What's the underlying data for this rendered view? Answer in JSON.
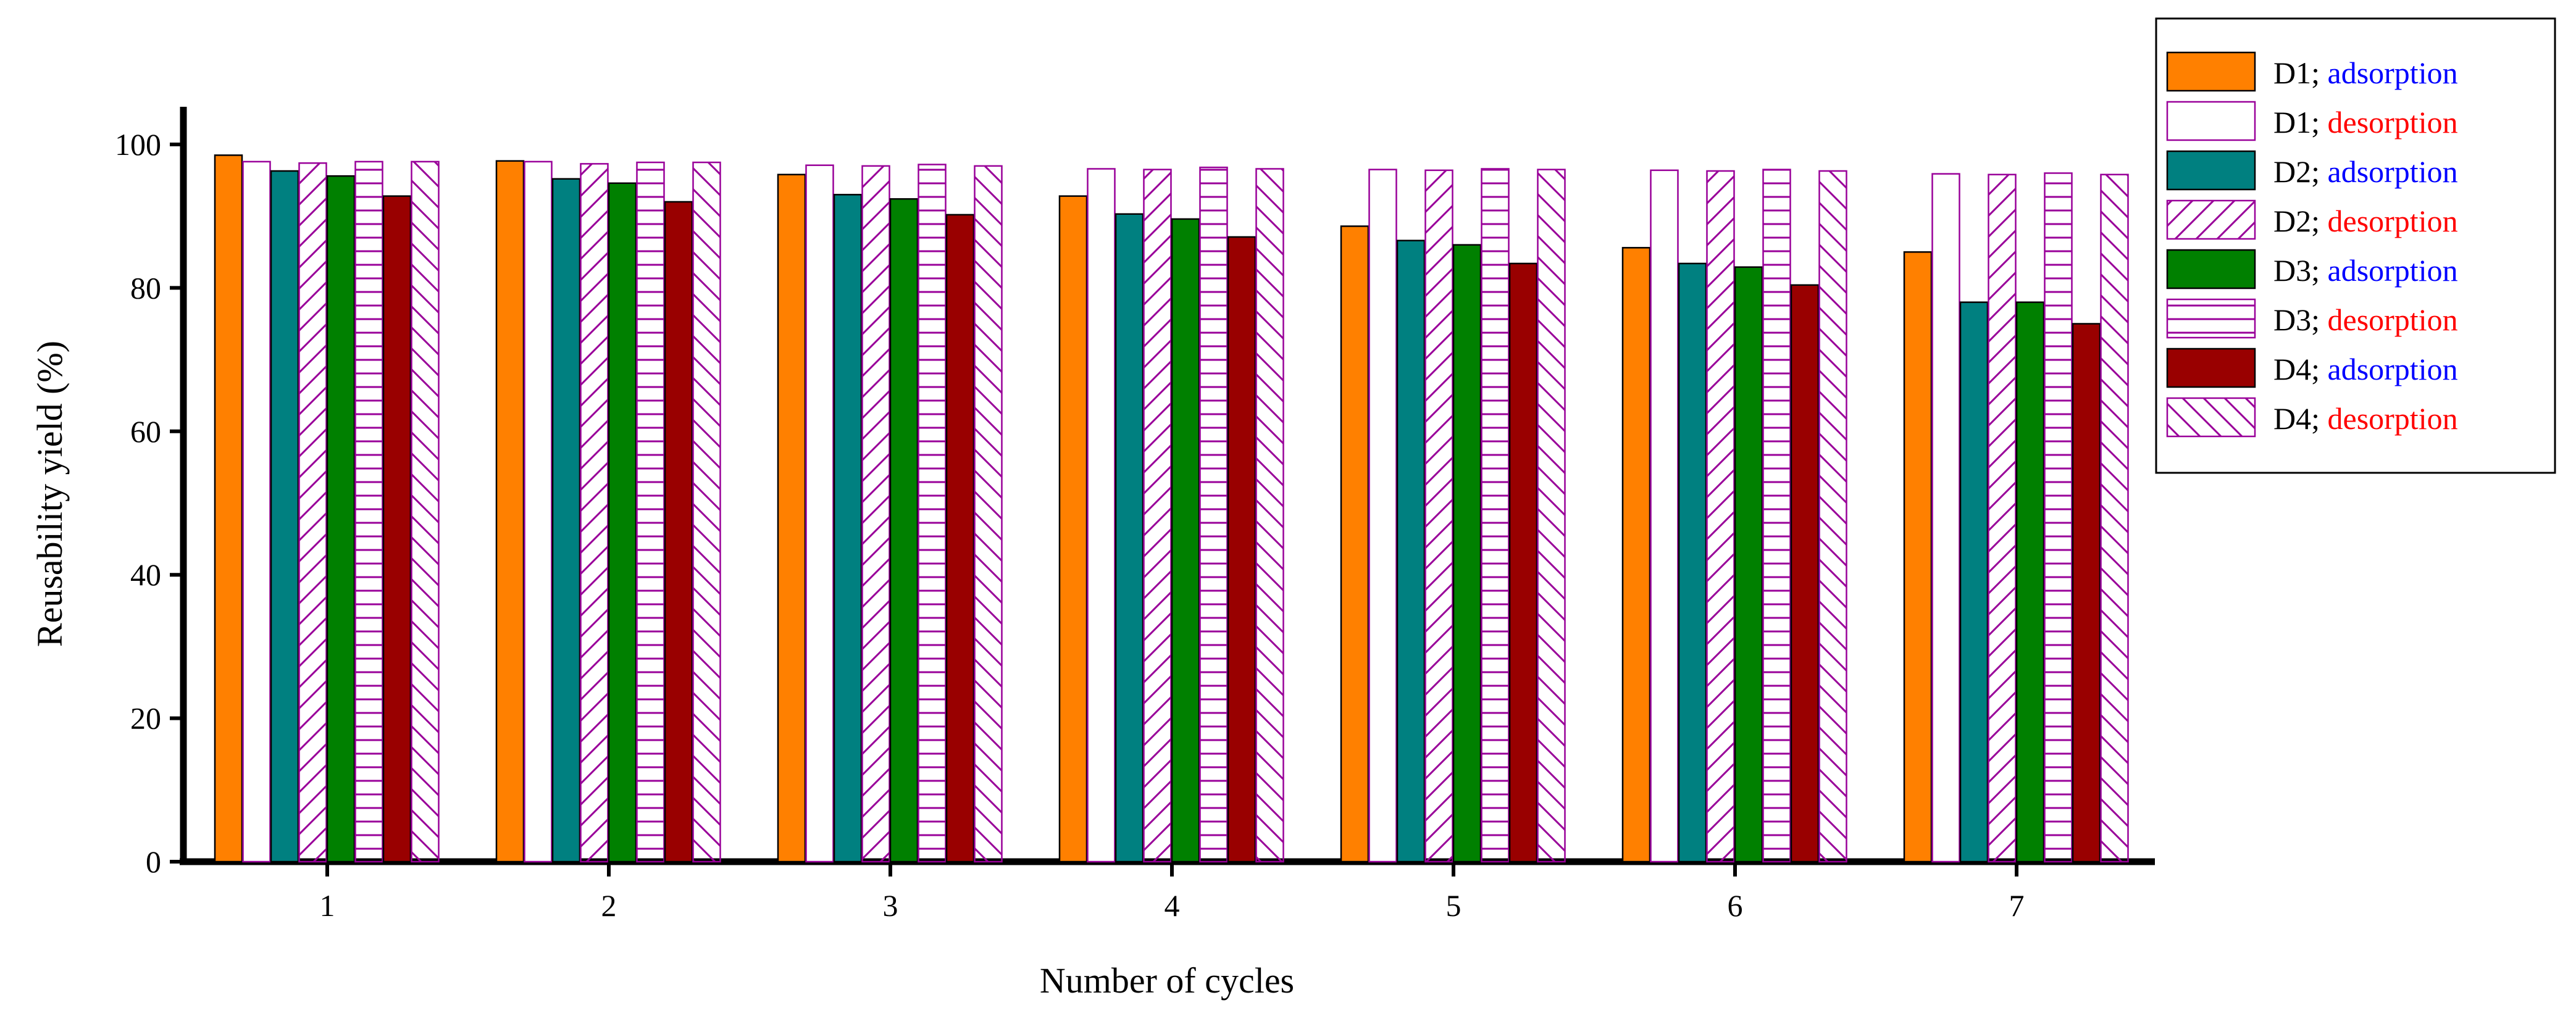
{
  "chart_data": {
    "type": "bar",
    "title": "",
    "xlabel": "Number of cycles",
    "ylabel": "Reusability yield (%)",
    "ylim": [
      0,
      105
    ],
    "yticks": [
      0,
      20,
      40,
      60,
      80,
      100
    ],
    "grid": false,
    "legend_position": "right",
    "categories": [
      "1",
      "2",
      "3",
      "4",
      "5",
      "6",
      "7"
    ],
    "series": [
      {
        "name_prefix": "D1; ",
        "name_suffix": "adsorption",
        "suffix_color": "#0000ff",
        "fill": "#ff8000",
        "pattern": "solid",
        "values": [
          98.5,
          97.7,
          95.8,
          92.8,
          88.6,
          85.6,
          85.0
        ]
      },
      {
        "name_prefix": "D1; ",
        "name_suffix": "desorption",
        "suffix_color": "#ff0000",
        "fill": "#ffffff",
        "pattern": "none",
        "values": [
          97.6,
          97.6,
          97.1,
          96.6,
          96.5,
          96.4,
          95.9
        ]
      },
      {
        "name_prefix": "D2; ",
        "name_suffix": "adsorption",
        "suffix_color": "#0000ff",
        "fill": "#008080",
        "pattern": "solid",
        "values": [
          96.3,
          95.2,
          93.0,
          90.3,
          86.6,
          83.4,
          78.0
        ]
      },
      {
        "name_prefix": "D2; ",
        "name_suffix": "desorption",
        "suffix_color": "#ff0000",
        "fill": "#ffffff",
        "pattern": "diagonal-up",
        "values": [
          97.4,
          97.3,
          97.0,
          96.5,
          96.4,
          96.3,
          95.8
        ]
      },
      {
        "name_prefix": "D3; ",
        "name_suffix": "adsorption",
        "suffix_color": "#0000ff",
        "fill": "#008000",
        "pattern": "solid",
        "values": [
          95.6,
          94.6,
          92.4,
          89.6,
          86.0,
          82.9,
          78.0
        ]
      },
      {
        "name_prefix": "D3; ",
        "name_suffix": "desorption",
        "suffix_color": "#ff0000",
        "fill": "#ffffff",
        "pattern": "horizontal",
        "values": [
          97.6,
          97.5,
          97.2,
          96.8,
          96.6,
          96.5,
          96.0
        ]
      },
      {
        "name_prefix": "D4; ",
        "name_suffix": "adsorption",
        "suffix_color": "#0000ff",
        "fill": "#990000",
        "pattern": "solid",
        "values": [
          92.8,
          92.0,
          90.2,
          87.1,
          83.4,
          80.4,
          75.0
        ]
      },
      {
        "name_prefix": "D4; ",
        "name_suffix": "desorption",
        "suffix_color": "#ff0000",
        "fill": "#ffffff",
        "pattern": "diagonal-down",
        "values": [
          97.6,
          97.5,
          97.0,
          96.6,
          96.5,
          96.3,
          95.8
        ]
      }
    ]
  },
  "colors": {
    "pattern_stroke": "#990099",
    "axis": "#000000"
  }
}
